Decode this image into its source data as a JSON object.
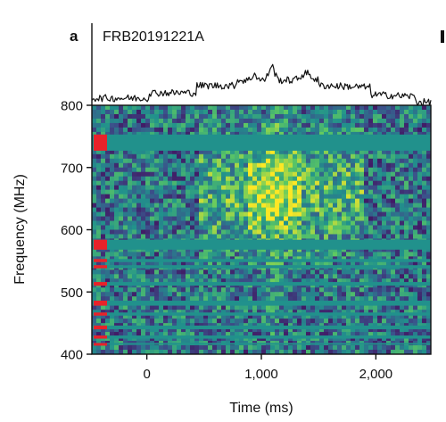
{
  "panel": {
    "letter": "a",
    "title": "FRB20191221A"
  },
  "chart_data": {
    "type": "heatmap",
    "xlabel": "Time (ms)",
    "ylabel": "Frequency (MHz)",
    "xlim": [
      -480,
      2480
    ],
    "ylim": [
      400,
      800
    ],
    "xticks": [
      {
        "value": 0,
        "label": "0"
      },
      {
        "value": 1000,
        "label": "1,000"
      },
      {
        "value": 2000,
        "label": "2,000"
      }
    ],
    "yticks": [
      {
        "value": 400,
        "label": "400"
      },
      {
        "value": 500,
        "label": "500"
      },
      {
        "value": 600,
        "label": "600"
      },
      {
        "value": 700,
        "label": "700"
      },
      {
        "value": 800,
        "label": "800"
      }
    ],
    "masked_bands_mhz": [
      [
        727,
        753
      ],
      [
        568,
        584
      ],
      [
        548,
        553
      ],
      [
        538,
        543
      ],
      [
        510,
        516
      ],
      [
        478,
        486
      ],
      [
        462,
        467
      ],
      [
        440,
        446
      ],
      [
        425,
        430
      ],
      [
        415,
        418
      ]
    ],
    "colors": {
      "mask": "#21918c",
      "flag": "#e8222a",
      "low": "#2c3e8c",
      "high": "#f5ee25"
    }
  }
}
